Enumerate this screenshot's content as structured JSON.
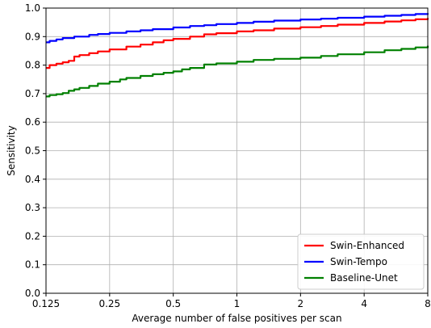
{
  "chart_data": {
    "type": "line",
    "title": "",
    "xlabel": "Average number of false positives per scan",
    "ylabel": "Sensitivity",
    "x_scale": "log2",
    "xlim": [
      0.125,
      8
    ],
    "ylim": [
      0,
      1
    ],
    "grid": true,
    "legend_position": "lower-right",
    "x_ticks": [
      0.125,
      0.25,
      0.5,
      1,
      2,
      4,
      8
    ],
    "x_tick_labels": [
      "0.125",
      "0.25",
      "0.5",
      "1",
      "2",
      "4",
      "8"
    ],
    "y_ticks": [
      0,
      0.1,
      0.2,
      0.3,
      0.4,
      0.5,
      0.6,
      0.7,
      0.8,
      0.9,
      1.0
    ],
    "y_tick_labels": [
      "0.0",
      "0.1",
      "0.2",
      "0.3",
      "0.4",
      "0.5",
      "0.6",
      "0.7",
      "0.8",
      "0.9",
      "1.0"
    ],
    "series": [
      {
        "name": "Swin-Enhanced",
        "color": "#ff0000",
        "x": [
          0.125,
          0.13,
          0.14,
          0.15,
          0.16,
          0.17,
          0.18,
          0.2,
          0.22,
          0.25,
          0.3,
          0.35,
          0.4,
          0.45,
          0.5,
          0.6,
          0.7,
          0.8,
          1.0,
          1.2,
          1.5,
          2.0,
          2.5,
          3.0,
          4.0,
          5.0,
          6.0,
          7.0,
          8.0
        ],
        "y": [
          0.79,
          0.8,
          0.805,
          0.81,
          0.815,
          0.83,
          0.835,
          0.842,
          0.848,
          0.855,
          0.865,
          0.872,
          0.88,
          0.887,
          0.892,
          0.9,
          0.908,
          0.912,
          0.918,
          0.922,
          0.928,
          0.933,
          0.937,
          0.942,
          0.948,
          0.953,
          0.957,
          0.961,
          0.965
        ]
      },
      {
        "name": "Swin-Tempo",
        "color": "#0000ff",
        "x": [
          0.125,
          0.13,
          0.14,
          0.15,
          0.17,
          0.2,
          0.22,
          0.25,
          0.3,
          0.35,
          0.4,
          0.5,
          0.6,
          0.7,
          0.8,
          1.0,
          1.2,
          1.5,
          2.0,
          2.5,
          3.0,
          4.0,
          5.0,
          6.0,
          7.0,
          8.0
        ],
        "y": [
          0.88,
          0.885,
          0.89,
          0.895,
          0.9,
          0.906,
          0.909,
          0.913,
          0.918,
          0.922,
          0.926,
          0.932,
          0.937,
          0.94,
          0.944,
          0.948,
          0.952,
          0.956,
          0.96,
          0.963,
          0.966,
          0.97,
          0.973,
          0.976,
          0.979,
          0.982
        ]
      },
      {
        "name": "Baseline-Unet",
        "color": "#008000",
        "x": [
          0.125,
          0.13,
          0.14,
          0.15,
          0.16,
          0.17,
          0.18,
          0.2,
          0.22,
          0.25,
          0.28,
          0.3,
          0.35,
          0.4,
          0.45,
          0.5,
          0.55,
          0.6,
          0.7,
          0.8,
          1.0,
          1.2,
          1.5,
          2.0,
          2.5,
          3.0,
          4.0,
          5.0,
          6.0,
          7.0,
          8.0
        ],
        "y": [
          0.69,
          0.695,
          0.698,
          0.702,
          0.71,
          0.715,
          0.72,
          0.727,
          0.735,
          0.742,
          0.75,
          0.755,
          0.762,
          0.768,
          0.773,
          0.778,
          0.785,
          0.79,
          0.802,
          0.806,
          0.812,
          0.818,
          0.822,
          0.826,
          0.832,
          0.838,
          0.845,
          0.852,
          0.857,
          0.862,
          0.868
        ]
      }
    ]
  }
}
